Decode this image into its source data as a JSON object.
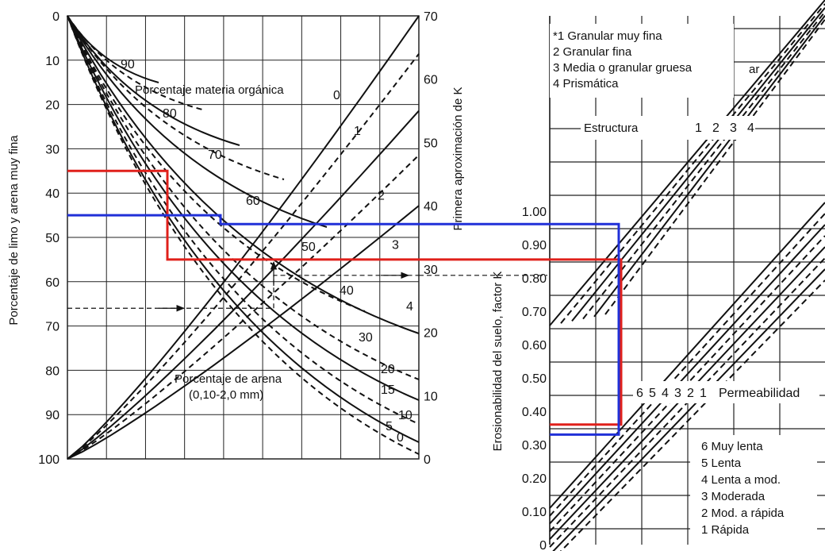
{
  "colors": {
    "grid": "#222222",
    "red_path": "#e0201b",
    "blue_path": "#2030d8",
    "ink": "#111111"
  },
  "chart_data": [
    {
      "type": "line",
      "title": "",
      "ylabel": "Porcentaje de limo y arena muy fina",
      "y_ticks": [
        "0",
        "10",
        "20",
        "30",
        "40",
        "50",
        "60",
        "70",
        "80",
        "90",
        "100"
      ],
      "y_range": [
        0,
        100
      ],
      "y2label": "Primera aproximación de K",
      "y2_ticks": [
        "70",
        "60",
        "50",
        "40",
        "30",
        "20",
        "10",
        "0"
      ],
      "y2_range": [
        0,
        70
      ],
      "y2_scale": 0.01,
      "grid": true,
      "family_organic_matter": {
        "label": "Porcentaje materia orgánica",
        "series": [
          {
            "name": "0",
            "k_at_full_silt": 70
          },
          {
            "name": "1",
            "k_at_full_silt": 64
          },
          {
            "name": "2",
            "k_at_full_silt": 55
          },
          {
            "name": "3",
            "k_at_full_silt": 48
          },
          {
            "name": "4",
            "k_at_full_silt": 40
          }
        ]
      },
      "family_sand": {
        "label_line1": "Porcentaje de arena",
        "label_line2": "(0,10-2,0 mm)",
        "series": [
          {
            "name": "90"
          },
          {
            "name": "80"
          },
          {
            "name": "70"
          },
          {
            "name": "60"
          },
          {
            "name": "50"
          },
          {
            "name": "40"
          },
          {
            "name": "30"
          },
          {
            "name": "20"
          },
          {
            "name": "15"
          },
          {
            "name": "10"
          },
          {
            "name": "5"
          },
          {
            "name": "0"
          }
        ]
      },
      "example_guides": {
        "dashed_entry_silt": 66,
        "dashed_k": 0.29,
        "red": {
          "silt": 35,
          "sand_step_silt": 55
        },
        "blue": {
          "silt": 45,
          "sand_step_silt": 47
        }
      }
    },
    {
      "type": "line",
      "title": "",
      "ylabel": "Erosionabilidad del suelo, factor K",
      "y_ticks": [
        "1.00",
        "0.90",
        "0.80",
        "0.70",
        "0.60",
        "0.50",
        "0.40",
        "0.30",
        "0.20",
        "0.10",
        "0"
      ],
      "y_range": [
        0,
        1.0
      ],
      "legend_structure": [
        "*1 Granular muy fina",
        " 2 Granular fina",
        " 3 Media o granular gruesa",
        " 4  Prismática"
      ],
      "structure_label": "Estructura",
      "structure_classes": [
        "1",
        "2",
        "3",
        "4"
      ],
      "permeability_label": "Permeabilidad",
      "permeability_classes": [
        "6",
        "5",
        "4",
        "3",
        "2",
        "1"
      ],
      "legend_permeability": [
        "6  Muy lenta",
        "5  Lenta",
        "4  Lenta a mod.",
        "3  Moderada",
        "2  Mod. a rápida",
        "1  Rápida"
      ],
      "scrap_text": "ar",
      "example_results": {
        "dashed_first_k": 0.29,
        "dashed_final_k": 0.41,
        "red_first_k": 0.35,
        "red_final_k": 0.36,
        "blue_first_k": 0.26,
        "blue_final_k": 0.33
      },
      "grid": true
    }
  ]
}
